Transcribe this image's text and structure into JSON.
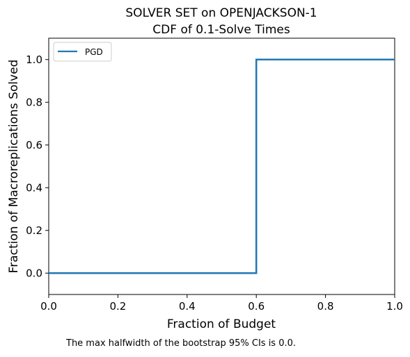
{
  "chart_data": {
    "type": "line",
    "title": "SOLVER SET on OPENJACKSON-1",
    "subtitle": "CDF of 0.1-Solve Times",
    "xlabel": "Fraction of Budget",
    "ylabel": "Fraction of Macroreplications Solved",
    "xlim": [
      0.0,
      1.0
    ],
    "ylim": [
      -0.1,
      1.1
    ],
    "x_ticks": [
      "0.0",
      "0.2",
      "0.4",
      "0.6",
      "0.8",
      "1.0"
    ],
    "y_ticks": [
      "0.0",
      "0.2",
      "0.4",
      "0.6",
      "0.8",
      "1.0"
    ],
    "grid": false,
    "legend_position": "top-left",
    "series": [
      {
        "name": "PGD",
        "color": "#1f77b4",
        "step": true,
        "x": [
          0.0,
          0.6,
          0.6,
          1.0
        ],
        "y": [
          0.0,
          0.0,
          1.0,
          1.0
        ]
      }
    ]
  },
  "footnote": "The max halfwidth of the bootstrap 95% CIs is 0.0."
}
